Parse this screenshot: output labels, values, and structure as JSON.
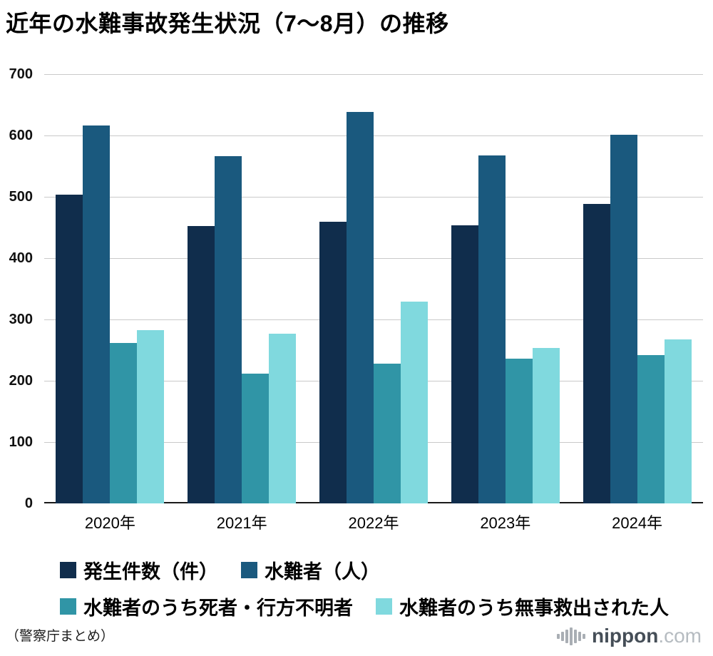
{
  "title": "近年の水難事故発生状況（7〜8月）の推移",
  "source_note": "（警察庁まとめ）",
  "logo": {
    "icon": "soundwave-icon",
    "name": "nippon",
    "suffix": ".com"
  },
  "chart_data": {
    "type": "bar",
    "title": "近年の水難事故発生状況（7〜8月）の推移",
    "xlabel": "",
    "ylabel": "",
    "categories": [
      "2020年",
      "2021年",
      "2022年",
      "2023年",
      "2024年"
    ],
    "series": [
      {
        "name": "発生件数（件）",
        "color": "#102d4c",
        "values": [
          504,
          452,
          459,
          453,
          488
        ]
      },
      {
        "name": "水難者（人）",
        "color": "#1a597e",
        "values": [
          616,
          566,
          638,
          568,
          601
        ]
      },
      {
        "name": "水難者のうち死者・行方不明者",
        "color": "#3095a6",
        "values": [
          262,
          212,
          228,
          236,
          242
        ]
      },
      {
        "name": "水難者のうち無事救出された人",
        "color": "#80d9de",
        "values": [
          282,
          277,
          329,
          254,
          267
        ]
      }
    ],
    "ylim": [
      0,
      700
    ],
    "ytick_interval": 100,
    "grid": true,
    "legend_position": "bottom"
  }
}
